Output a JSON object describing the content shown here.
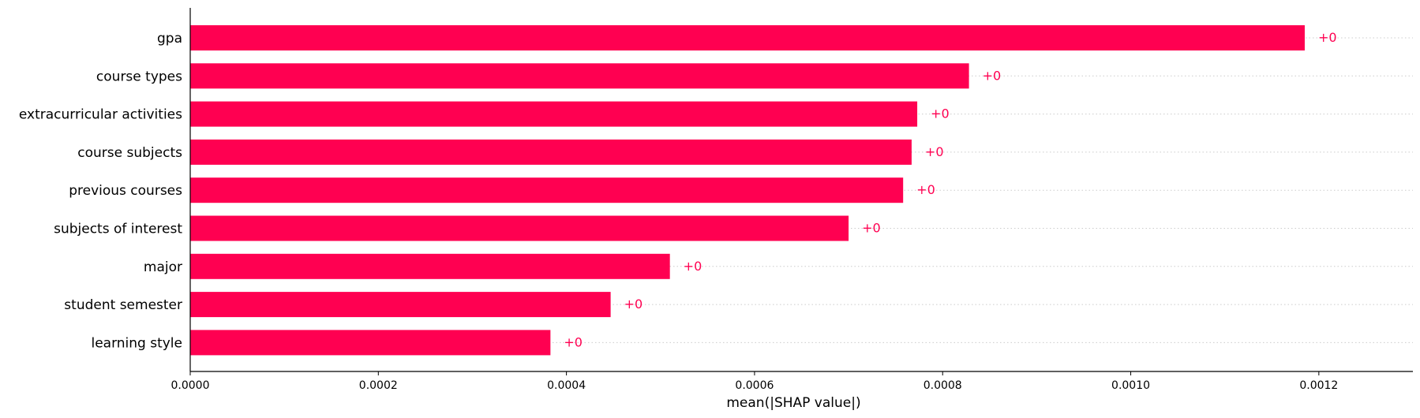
{
  "chart_data": {
    "type": "bar",
    "orientation": "horizontal",
    "categories": [
      "gpa",
      "course types",
      "extracurricular activities",
      "course subjects",
      "previous courses",
      "subjects of interest",
      "major",
      "student semester",
      "learning style"
    ],
    "values": [
      0.001185,
      0.000828,
      0.000773,
      0.000767,
      0.000758,
      0.0007,
      0.00051,
      0.000447,
      0.000383
    ],
    "data_labels": [
      "+0",
      "+0",
      "+0",
      "+0",
      "+0",
      "+0",
      "+0",
      "+0",
      "+0"
    ],
    "title": "",
    "xlabel": "mean(|SHAP value|)",
    "ylabel": "",
    "xlim": [
      0,
      0.0013
    ],
    "x_ticks": [
      0,
      0.0002,
      0.0004,
      0.0006,
      0.0008,
      0.001,
      0.0012
    ],
    "x_tick_labels": [
      "0.0000",
      "0.0002",
      "0.0004",
      "0.0006",
      "0.0008",
      "0.0010",
      "0.0012"
    ],
    "grid": "dotted horizontal guide lines per bar",
    "legend": "none",
    "bar_color": "#ff0051",
    "label_color": "#ff0051",
    "guide_color": "#cccccc"
  }
}
